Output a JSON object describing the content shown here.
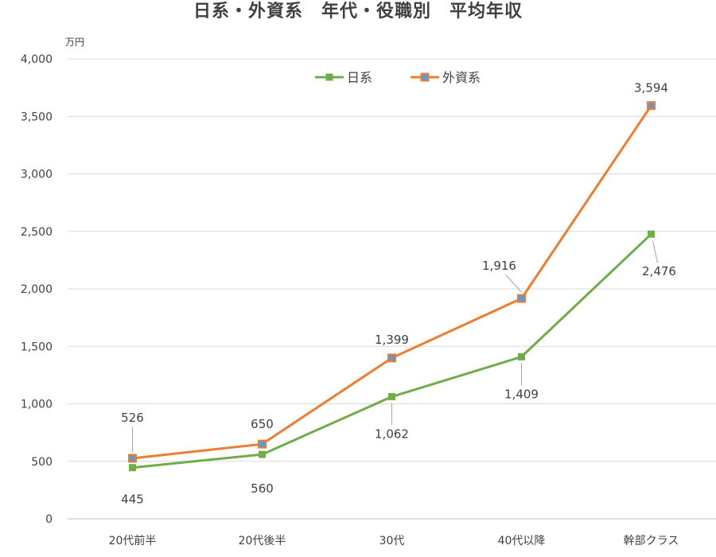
{
  "chart_data": {
    "type": "line",
    "title": "日系・外資系　年代・役職別　平均年収",
    "unit": "万円",
    "categories": [
      "20代前半",
      "20代後半",
      "30代",
      "40代以降",
      "幹部クラス"
    ],
    "ylim": [
      0,
      4000
    ],
    "yticks": [
      "0",
      "500",
      "1,000",
      "1,500",
      "2,000",
      "2,500",
      "3,000",
      "3,500",
      "4,000"
    ],
    "grid": true,
    "legend_position": "top-center",
    "series": [
      {
        "name": "日系",
        "color": "#70AD47",
        "values": [
          445,
          560,
          1062,
          1409,
          2476
        ],
        "labels": [
          "445",
          "560",
          "1,062",
          "1,409",
          "2,476"
        ]
      },
      {
        "name": "外資系",
        "color": "#ED7D31",
        "marker_color": "#5B9BD5",
        "values": [
          526,
          650,
          1399,
          1916,
          3594
        ],
        "labels": [
          "526",
          "650",
          "1,399",
          "1,916",
          "3,594"
        ]
      }
    ]
  }
}
